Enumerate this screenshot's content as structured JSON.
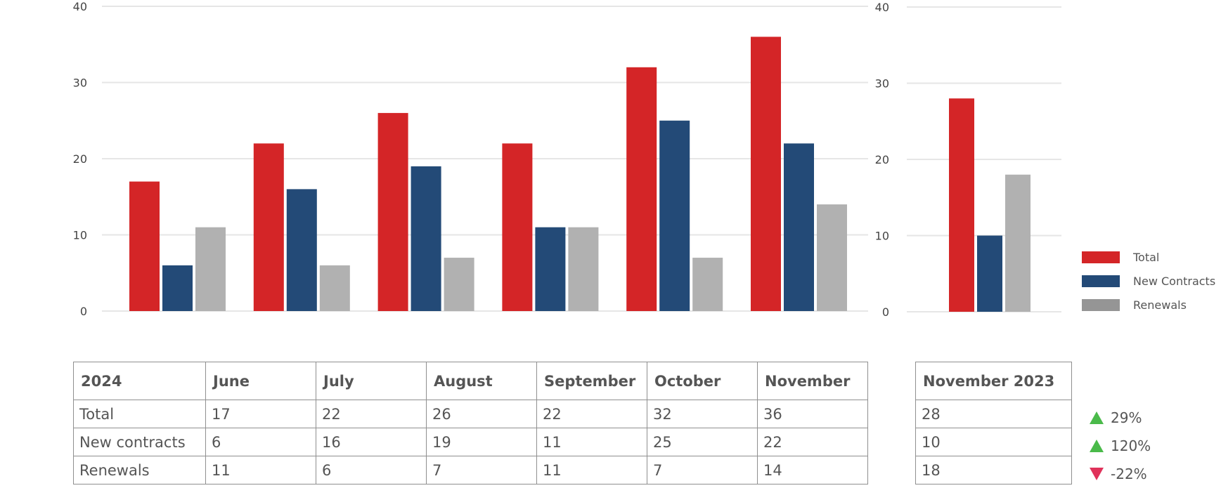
{
  "colors": {
    "Total": "#d42527",
    "New Contracts": "#234a77",
    "Renewals": "#b1b1b1",
    "legend_renewals": "#959595",
    "grid": "#e6e6e6"
  },
  "chart_data": [
    {
      "type": "bar",
      "categories": [
        "June",
        "July",
        "Aug",
        "Sept",
        "Oct",
        "Nov 2024"
      ],
      "series": [
        {
          "name": "Total",
          "values": [
            17,
            22,
            26,
            22,
            32,
            36
          ]
        },
        {
          "name": "New Contracts",
          "values": [
            6,
            16,
            19,
            11,
            25,
            22
          ]
        },
        {
          "name": "Renewals",
          "values": [
            11,
            6,
            7,
            11,
            7,
            14
          ]
        }
      ],
      "ylim": [
        0,
        40
      ],
      "yticks": [
        0,
        10,
        20,
        30,
        40
      ],
      "grid": true
    },
    {
      "type": "bar",
      "categories": [
        "Nov 2023"
      ],
      "series": [
        {
          "name": "Total",
          "values": [
            28
          ]
        },
        {
          "name": "New Contracts",
          "values": [
            10
          ]
        },
        {
          "name": "Renewals",
          "values": [
            18
          ]
        }
      ],
      "ylim": [
        0,
        40
      ],
      "yticks": [
        0,
        10,
        20,
        30,
        40
      ],
      "grid": true,
      "legend": "right"
    }
  ],
  "legend": [
    "Total",
    "New Contracts",
    "Renewals"
  ],
  "table_2024": {
    "headers": [
      "2024",
      "June",
      "July",
      "August",
      "September",
      "October",
      "November"
    ],
    "rows": [
      [
        "Total",
        "17",
        "22",
        "26",
        "22",
        "32",
        "36"
      ],
      [
        "New contracts",
        "6",
        "16",
        "19",
        "11",
        "25",
        "22"
      ],
      [
        "Renewals",
        "11",
        "6",
        "7",
        "11",
        "7",
        "14"
      ]
    ]
  },
  "table_2023": {
    "header": "November 2023",
    "rows": [
      "28",
      "10",
      "18"
    ]
  },
  "changes": [
    {
      "direction": "up",
      "value": "29%"
    },
    {
      "direction": "up",
      "value": "120%"
    },
    {
      "direction": "down",
      "value": "-22%"
    }
  ]
}
